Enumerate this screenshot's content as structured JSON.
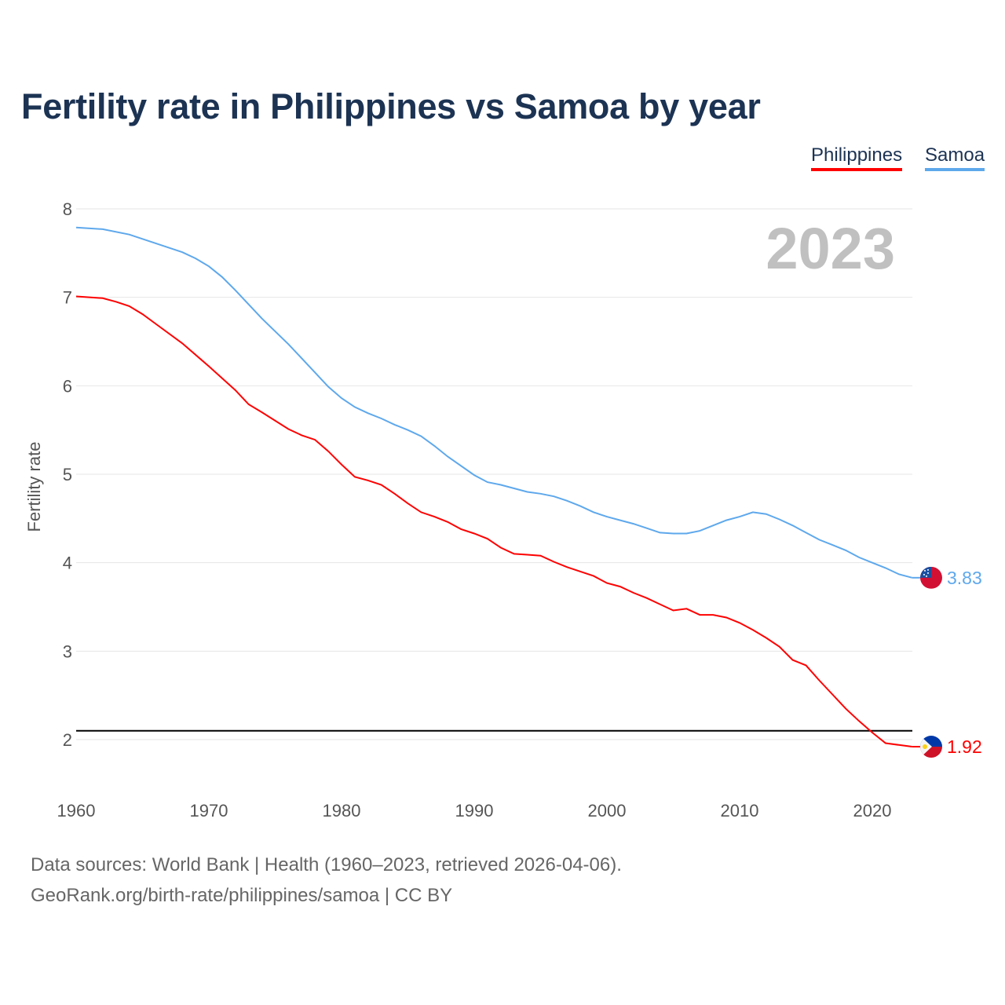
{
  "chart_data": {
    "type": "line",
    "title": "Fertility rate in Philippines vs Samoa by year",
    "xlabel": "",
    "ylabel": "Fertility rate",
    "xlim": [
      1960,
      2023
    ],
    "ylim": [
      1.5,
      8.2
    ],
    "x_ticks": [
      1960,
      1970,
      1980,
      1990,
      2000,
      2010,
      2020
    ],
    "y_ticks": [
      2,
      3,
      4,
      5,
      6,
      7,
      8
    ],
    "grid": true,
    "legend_position": "top-right",
    "year_label": "2023",
    "reference_line": {
      "y": 2.1,
      "color": "#000000"
    },
    "series": [
      {
        "name": "Philippines",
        "color": "#ff0000",
        "end_label": "1.92",
        "flag": "philippines-flag",
        "points": [
          [
            1960,
            7.01
          ],
          [
            1962,
            6.99
          ],
          [
            1963,
            6.95
          ],
          [
            1964,
            6.9
          ],
          [
            1965,
            6.81
          ],
          [
            1966,
            6.7
          ],
          [
            1968,
            6.48
          ],
          [
            1970,
            6.22
          ],
          [
            1972,
            5.95
          ],
          [
            1973,
            5.79
          ],
          [
            1974,
            5.7
          ],
          [
            1976,
            5.51
          ],
          [
            1977,
            5.44
          ],
          [
            1978,
            5.39
          ],
          [
            1979,
            5.26
          ],
          [
            1980,
            5.11
          ],
          [
            1981,
            4.97
          ],
          [
            1982,
            4.93
          ],
          [
            1983,
            4.88
          ],
          [
            1984,
            4.78
          ],
          [
            1985,
            4.67
          ],
          [
            1986,
            4.57
          ],
          [
            1987,
            4.52
          ],
          [
            1988,
            4.46
          ],
          [
            1989,
            4.38
          ],
          [
            1990,
            4.33
          ],
          [
            1991,
            4.27
          ],
          [
            1992,
            4.17
          ],
          [
            1993,
            4.1
          ],
          [
            1994,
            4.09
          ],
          [
            1995,
            4.08
          ],
          [
            1996,
            4.01
          ],
          [
            1997,
            3.95
          ],
          [
            1998,
            3.9
          ],
          [
            1999,
            3.85
          ],
          [
            2000,
            3.77
          ],
          [
            2001,
            3.73
          ],
          [
            2002,
            3.66
          ],
          [
            2003,
            3.6
          ],
          [
            2004,
            3.53
          ],
          [
            2005,
            3.46
          ],
          [
            2006,
            3.48
          ],
          [
            2007,
            3.41
          ],
          [
            2008,
            3.41
          ],
          [
            2009,
            3.38
          ],
          [
            2010,
            3.32
          ],
          [
            2011,
            3.24
          ],
          [
            2012,
            3.15
          ],
          [
            2013,
            3.05
          ],
          [
            2014,
            2.9
          ],
          [
            2015,
            2.84
          ],
          [
            2016,
            2.67
          ],
          [
            2017,
            2.51
          ],
          [
            2018,
            2.35
          ],
          [
            2019,
            2.21
          ],
          [
            2020,
            2.08
          ],
          [
            2021,
            1.96
          ],
          [
            2022,
            1.94
          ],
          [
            2023,
            1.92
          ]
        ]
      },
      {
        "name": "Samoa",
        "color": "#5ea8ec",
        "end_label": "3.83",
        "flag": "samoa-flag",
        "points": [
          [
            1960,
            7.79
          ],
          [
            1962,
            7.77
          ],
          [
            1964,
            7.71
          ],
          [
            1966,
            7.61
          ],
          [
            1968,
            7.51
          ],
          [
            1969,
            7.44
          ],
          [
            1970,
            7.35
          ],
          [
            1971,
            7.23
          ],
          [
            1972,
            7.08
          ],
          [
            1973,
            6.92
          ],
          [
            1974,
            6.76
          ],
          [
            1976,
            6.47
          ],
          [
            1978,
            6.15
          ],
          [
            1979,
            5.99
          ],
          [
            1980,
            5.86
          ],
          [
            1981,
            5.76
          ],
          [
            1982,
            5.69
          ],
          [
            1983,
            5.63
          ],
          [
            1984,
            5.56
          ],
          [
            1985,
            5.5
          ],
          [
            1986,
            5.43
          ],
          [
            1987,
            5.32
          ],
          [
            1988,
            5.2
          ],
          [
            1990,
            4.99
          ],
          [
            1991,
            4.91
          ],
          [
            1992,
            4.88
          ],
          [
            1993,
            4.84
          ],
          [
            1994,
            4.8
          ],
          [
            1995,
            4.78
          ],
          [
            1996,
            4.75
          ],
          [
            1997,
            4.7
          ],
          [
            1998,
            4.64
          ],
          [
            1999,
            4.57
          ],
          [
            2000,
            4.52
          ],
          [
            2001,
            4.48
          ],
          [
            2002,
            4.44
          ],
          [
            2003,
            4.39
          ],
          [
            2004,
            4.34
          ],
          [
            2005,
            4.33
          ],
          [
            2006,
            4.33
          ],
          [
            2007,
            4.36
          ],
          [
            2008,
            4.42
          ],
          [
            2009,
            4.48
          ],
          [
            2010,
            4.52
          ],
          [
            2011,
            4.57
          ],
          [
            2012,
            4.55
          ],
          [
            2013,
            4.49
          ],
          [
            2014,
            4.42
          ],
          [
            2015,
            4.34
          ],
          [
            2016,
            4.26
          ],
          [
            2017,
            4.2
          ],
          [
            2018,
            4.14
          ],
          [
            2019,
            4.06
          ],
          [
            2020,
            4.0
          ],
          [
            2021,
            3.94
          ],
          [
            2022,
            3.87
          ],
          [
            2023,
            3.83
          ]
        ]
      }
    ]
  },
  "footer": {
    "source": "Data sources: World Bank | Health (1960–2023, retrieved 2026-04-06).",
    "credit": "GeoRank.org/birth-rate/philippines/samoa | CC BY"
  }
}
